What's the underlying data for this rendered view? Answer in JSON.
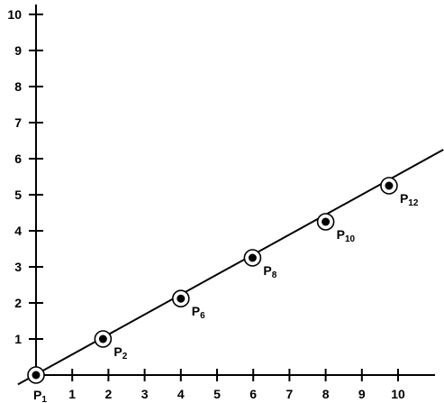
{
  "chart_data": {
    "type": "scatter",
    "xlim": [
      0,
      11
    ],
    "ylim": [
      0,
      10
    ],
    "xticks": [
      "1",
      "2",
      "3",
      "4",
      "5",
      "6",
      "7",
      "8",
      "9",
      "10"
    ],
    "yticks": [
      "1",
      "2",
      "3",
      "4",
      "5",
      "6",
      "7",
      "8",
      "9",
      "10"
    ],
    "grid": false,
    "line": {
      "x": [
        -0.5,
        11.25
      ],
      "y": [
        -0.26,
        6.25
      ]
    },
    "points": [
      {
        "x": 0,
        "y": 0,
        "label": "P",
        "sub": "1"
      },
      {
        "x": 1.85,
        "y": 1.0,
        "label": "P",
        "sub": "2"
      },
      {
        "x": 4.0,
        "y": 2.12,
        "label": "P",
        "sub": "6"
      },
      {
        "x": 5.98,
        "y": 3.25,
        "label": "P",
        "sub": "8"
      },
      {
        "x": 8.0,
        "y": 4.25,
        "label": "P",
        "sub": "10"
      },
      {
        "x": 9.75,
        "y": 5.25,
        "label": "P",
        "sub": "12"
      }
    ],
    "colors": {
      "axis": "#000000",
      "point": "#000000"
    }
  }
}
